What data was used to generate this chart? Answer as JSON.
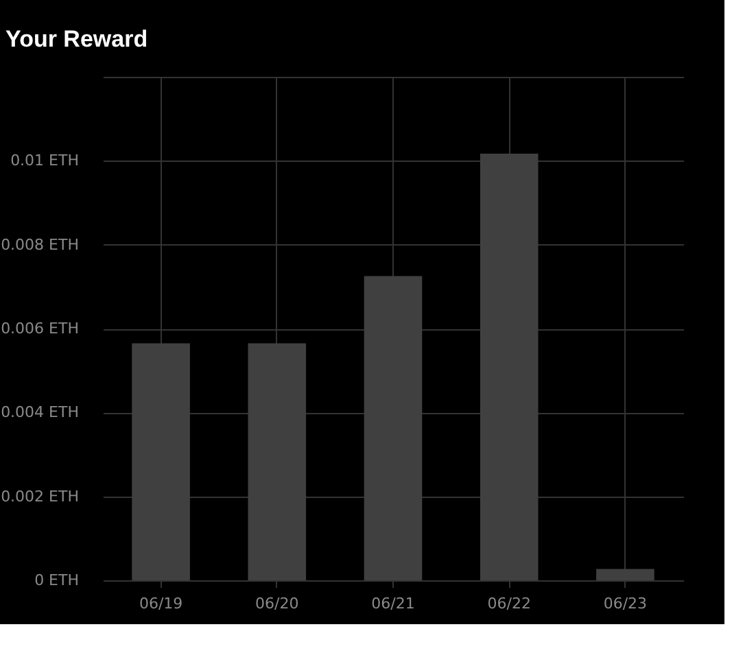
{
  "chart_data": {
    "type": "bar",
    "title": "Your Reward",
    "categories": [
      "06/19",
      "06/20",
      "06/21",
      "06/22",
      "06/23"
    ],
    "values": [
      0.00565,
      0.00565,
      0.00725,
      0.01017,
      0.00027
    ],
    "color": "#404040",
    "ylim": [
      0,
      0.012
    ],
    "yticks": [
      {
        "value": 0,
        "label": "0 ETH"
      },
      {
        "value": 0.002,
        "label": "0.002 ETH"
      },
      {
        "value": 0.004,
        "label": "0.004 ETH"
      },
      {
        "value": 0.006,
        "label": "0.006 ETH"
      },
      {
        "value": 0.008,
        "label": "0.008 ETH"
      },
      {
        "value": 0.01,
        "label": "0.01 ETH"
      },
      {
        "value": 0.012,
        "label": null
      }
    ],
    "grid": true
  }
}
